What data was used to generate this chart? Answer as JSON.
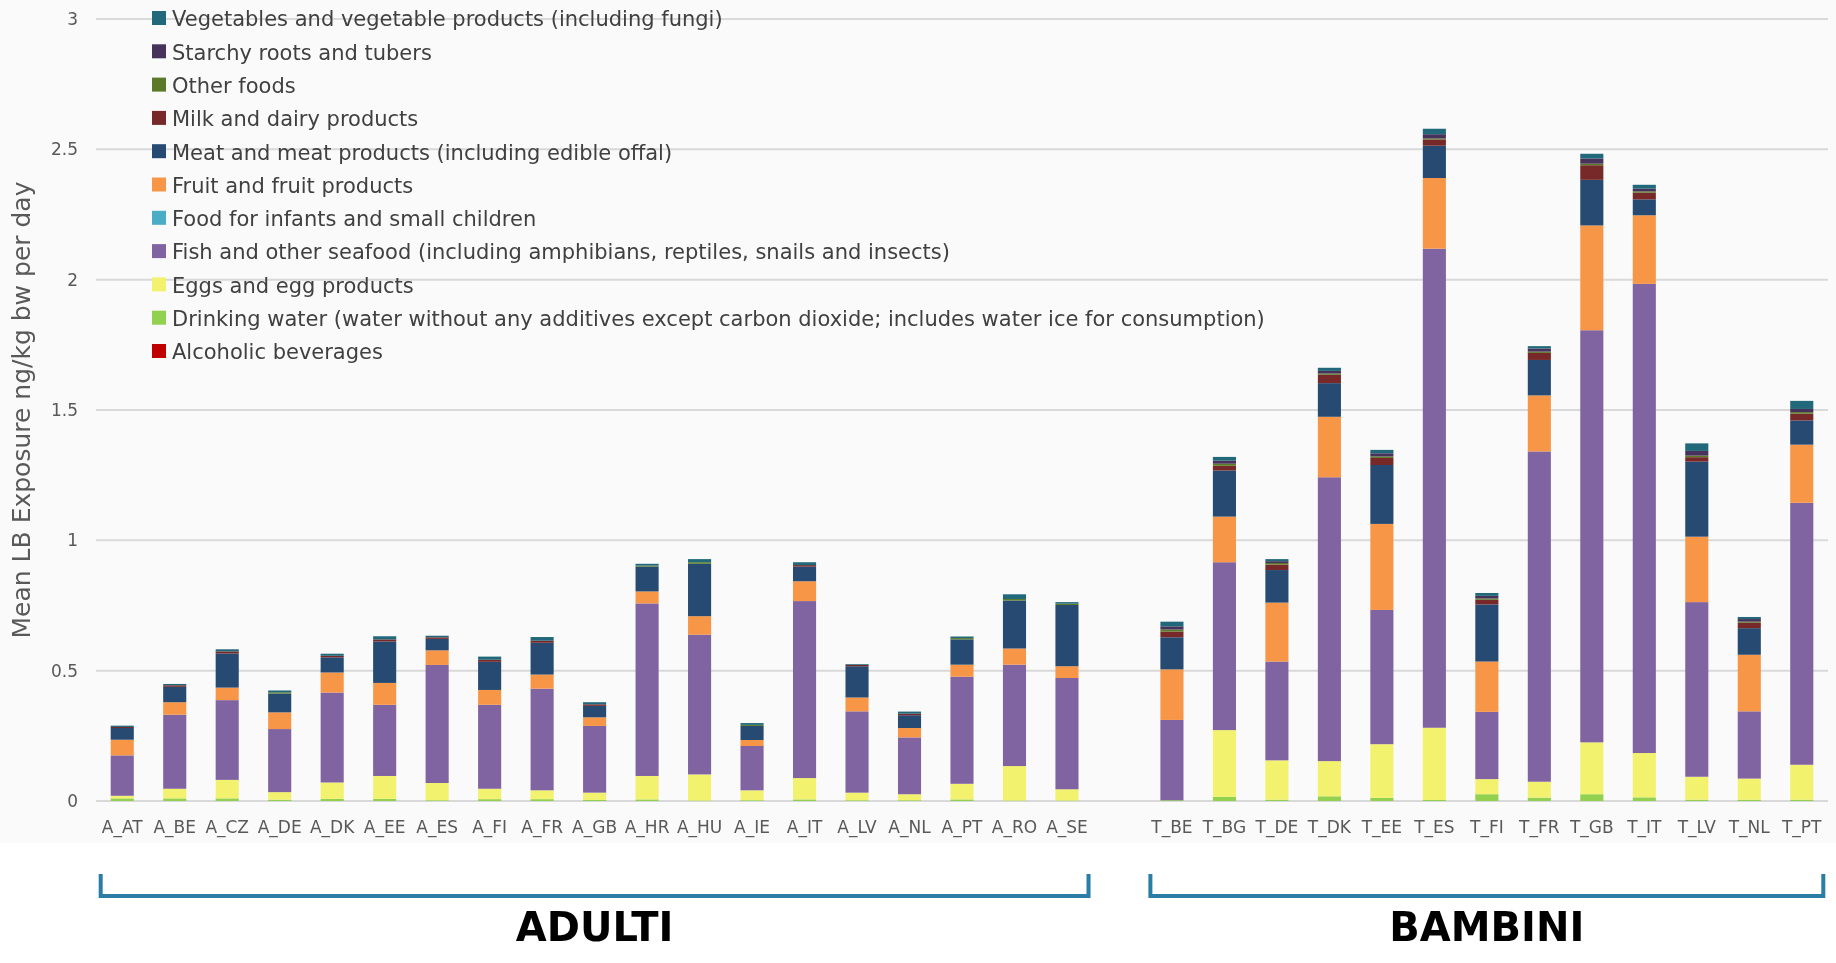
{
  "chart_data": {
    "type": "bar",
    "stacked": true,
    "ylabel": "Mean LB Exposure ng/kg bw per day",
    "ylim": [
      0,
      3
    ],
    "yticks": [
      0,
      0.5,
      1,
      1.5,
      2,
      2.5,
      3
    ],
    "grid": "y",
    "legend": "top left",
    "categories": [
      "A_AT",
      "A_BE",
      "A_CZ",
      "A_DE",
      "A_DK",
      "A_EE",
      "A_ES",
      "A_FI",
      "A_FR",
      "A_GB",
      "A_HR",
      "A_HU",
      "A_IE",
      "A_IT",
      "A_LV",
      "A_NL",
      "A_PT",
      "A_RO",
      "A_SE",
      null,
      "T_BE",
      "T_BG",
      "T_DE",
      "T_DK",
      "T_EE",
      "T_ES",
      "T_FI",
      "T_FR",
      "T_GB",
      "T_IT",
      "T_LV",
      "T_NL",
      "T_PT"
    ],
    "annotations": [
      "ADULTI",
      "BAMBINI"
    ],
    "series": [
      {
        "name": "Alcoholic beverages",
        "color": "#c00000",
        "values": [
          0,
          0,
          0,
          0,
          0,
          0,
          0,
          0,
          0,
          0,
          0,
          0,
          0,
          0,
          0,
          0,
          0,
          0,
          0,
          null,
          0,
          0,
          0,
          0,
          0,
          0,
          0,
          0,
          0,
          0,
          0,
          0,
          0
        ]
      },
      {
        "name": "Drinking water (water without any additives except carbon dioxide; includes water ice for consumption)",
        "color": "#92d050",
        "values": [
          0.01,
          0.01,
          0.01,
          0.005,
          0.008,
          0.008,
          0.003,
          0.007,
          0.007,
          0.004,
          0.006,
          0.002,
          0.003,
          0.006,
          0.003,
          0.003,
          0.006,
          0.002,
          0.002,
          null,
          0.003,
          0.016,
          0.005,
          0.018,
          0.012,
          0.004,
          0.026,
          0.013,
          0.026,
          0.014,
          0.005,
          0.005,
          0.005
        ]
      },
      {
        "name": "Eggs and egg products",
        "color": "#f2f26e",
        "values": [
          0.01,
          0.037,
          0.071,
          0.029,
          0.063,
          0.088,
          0.066,
          0.04,
          0.034,
          0.028,
          0.09,
          0.1,
          0.038,
          0.082,
          0.029,
          0.023,
          0.06,
          0.132,
          0.043,
          null,
          0,
          0.256,
          0.151,
          0.135,
          0.206,
          0.277,
          0.058,
          0.061,
          0.199,
          0.17,
          0.088,
          0.081,
          0.134
        ]
      },
      {
        "name": "Fish and other seafood (including amphibians, reptiles, snails and insects)",
        "color": "#8064a2",
        "values": [
          0.155,
          0.284,
          0.306,
          0.242,
          0.345,
          0.273,
          0.453,
          0.322,
          0.39,
          0.256,
          0.662,
          0.536,
          0.17,
          0.679,
          0.312,
          0.218,
          0.411,
          0.389,
          0.427,
          null,
          0.308,
          0.644,
          0.379,
          1.089,
          0.515,
          1.838,
          0.258,
          1.267,
          1.581,
          1.8,
          0.67,
          0.258,
          1.005
        ]
      },
      {
        "name": "Food for infants and small children",
        "color": "#4bacc6",
        "values": [
          0,
          0,
          0,
          0,
          0,
          0,
          0,
          0,
          0,
          0,
          0,
          0,
          0,
          0,
          0,
          0,
          0,
          0,
          0,
          null,
          0,
          0,
          0,
          0,
          0,
          0,
          0,
          0,
          0,
          0,
          0,
          0,
          0
        ]
      },
      {
        "name": "Fruit and fruit products",
        "color": "#f79646",
        "values": [
          0.06,
          0.048,
          0.048,
          0.064,
          0.077,
          0.084,
          0.056,
          0.057,
          0.054,
          0.033,
          0.046,
          0.071,
          0.023,
          0.076,
          0.053,
          0.036,
          0.046,
          0.062,
          0.045,
          null,
          0.194,
          0.175,
          0.226,
          0.232,
          0.33,
          0.271,
          0.193,
          0.215,
          0.402,
          0.263,
          0.251,
          0.217,
          0.223
        ]
      },
      {
        "name": "Meat and meat products (including edible offal)",
        "color": "#264a72",
        "values": [
          0.045,
          0.059,
          0.131,
          0.072,
          0.058,
          0.159,
          0.044,
          0.108,
          0.122,
          0.044,
          0.095,
          0.201,
          0.054,
          0.056,
          0.12,
          0.049,
          0.097,
          0.184,
          0.235,
          null,
          0.123,
          0.177,
          0.125,
          0.129,
          0.226,
          0.124,
          0.219,
          0.136,
          0.175,
          0.061,
          0.288,
          0.102,
          0.093
        ]
      },
      {
        "name": "Milk and dairy products",
        "color": "#772828",
        "values": [
          0.004,
          0.006,
          0.008,
          0,
          0.006,
          0.008,
          0.006,
          0.008,
          0.008,
          0.006,
          0,
          0,
          0,
          0.006,
          0.005,
          0.006,
          0,
          0,
          0,
          null,
          0.022,
          0.018,
          0.021,
          0.032,
          0.027,
          0.024,
          0.018,
          0.027,
          0.056,
          0.026,
          0.017,
          0.021,
          0.026
        ]
      },
      {
        "name": "Other foods",
        "color": "#5a7a2a",
        "values": [
          0,
          0,
          0,
          0.005,
          0,
          0,
          0,
          0,
          0,
          0,
          0.004,
          0.006,
          0.004,
          0,
          0,
          0,
          0.005,
          0.006,
          0.005,
          null,
          0.008,
          0.008,
          0.006,
          0.005,
          0.006,
          0.004,
          0.005,
          0.005,
          0.006,
          0.005,
          0.006,
          0.004,
          0.006
        ]
      },
      {
        "name": "Starchy roots and tubers",
        "color": "#46325a",
        "values": [
          0,
          0,
          0,
          0,
          0,
          0,
          0,
          0,
          0,
          0,
          0,
          0,
          0,
          0,
          0,
          0,
          0,
          0,
          0,
          null,
          0.012,
          0.012,
          0.007,
          0.01,
          0.012,
          0.016,
          0.01,
          0.012,
          0.02,
          0.01,
          0.018,
          0.01,
          0.012
        ]
      },
      {
        "name": "Vegetables and vegetable products (including fungi)",
        "color": "#21697a",
        "values": [
          0.005,
          0.005,
          0.008,
          0.007,
          0.008,
          0.012,
          0.006,
          0.012,
          0.014,
          0.008,
          0.007,
          0.012,
          0.007,
          0.011,
          0.003,
          0.008,
          0.006,
          0.018,
          0.006,
          null,
          0.018,
          0.014,
          0.008,
          0.012,
          0.013,
          0.021,
          0.011,
          0.009,
          0.018,
          0.015,
          0.029,
          0.008,
          0.031
        ]
      }
    ]
  }
}
